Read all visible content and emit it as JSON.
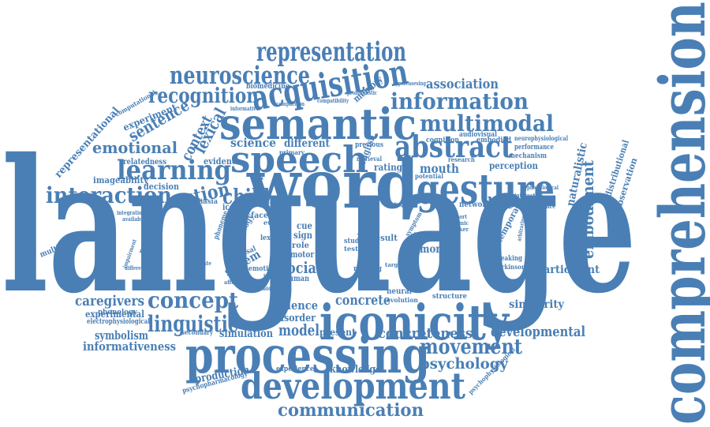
{
  "color": "#4a7fb5",
  "words": {
    "language": "language",
    "comprehension": "comprehension",
    "word": "word",
    "processing": "processing",
    "development": "development",
    "iconicity": "iconicity",
    "semantic": "semantic",
    "speech": "speech",
    "acquisition": "acquisition",
    "representation": "representation",
    "neuroscience": "neuroscience",
    "information": "information",
    "gesture": "gesture",
    "abstract": "abstract",
    "multimodal": "multimodal",
    "learning": "learning",
    "interaction": "interaction",
    "recognition": "recognition",
    "emotional": "emotional",
    "child": "child",
    "action": "action",
    "concept": "concept",
    "linguistic": "linguistic",
    "communication": "communication",
    "movement": "movement",
    "psychology": "psychology",
    "embodiment": "embodiment",
    "developmental": "developmental",
    "caregivers": "caregivers",
    "concreteness": "concreteness",
    "concrete": "concrete",
    "model": "model",
    "social": "social",
    "valence": "valence",
    "disorder": "disorder",
    "association": "association",
    "directed": "directed",
    "mouth": "mouth",
    "participant": "participant",
    "similarity": "similarity",
    "knowledge": "knowledge",
    "production": "production",
    "experimental": "experimental",
    "symbolism": "symbolism",
    "informativeness": "informativeness",
    "simulation": "simulation",
    "present": "present",
    "science": "science",
    "different": "different",
    "lexical": "lexical",
    "context": "context",
    "sentence": "sentence",
    "experiment": "experiment",
    "representational": "representational",
    "imageability": "imageability",
    "decision": "decision",
    "relatedness": "relatedness",
    "evidence": "evidence",
    "rating": "rating",
    "perception": "perception",
    "naturalistic": "naturalistic",
    "distributional": "distributional",
    "observation": "observation",
    "network": "network",
    "temporal": "temporal",
    "memory": "memory",
    "biomedicine": "biomedicine",
    "audiovisual": "audiovisual",
    "embodied": "embodied",
    "cognition": "cognition",
    "mechanism": "mechanism",
    "performance": "performance",
    "neurophysiological": "neurophysiological",
    "multimodality": "multimodality",
    "pragmatic": "pragmatic",
    "system": "system",
    "neurology": "neurology",
    "iconic": "iconic",
    "aphasia": "aphasia",
    "phonology": "phonology",
    "electrophysiological": "electrophysiological",
    "psychopharmacology": "psychopharmacology",
    "experience": "experience",
    "secondary": "secondary",
    "human": "human",
    "motor": "motor",
    "emotion": "emotion",
    "result": "result",
    "visual": "visual",
    "more": "more",
    "sound": "sound",
    "reading": "reading",
    "speed": "speed",
    "neural": "neural",
    "evolution": "evolution",
    "structure": "structure",
    "speaking": "speaking",
    "parkinson": "parkinson",
    "psychophysiological": "psychophysiological",
    "english": "english",
    "previous": "previous",
    "sign": "sign",
    "cue": "cue",
    "role": "role",
    "face": "face",
    "lexicon": "lexicon",
    "event": "event",
    "primary": "primary",
    "mapping": "mapping",
    "effect": "effect",
    "word_small": "word",
    "study": "study",
    "test": "test",
    "surprisal": "surprisal",
    "phoneme": "phoneme",
    "iconicity_small": "iconicity",
    "computational": "computational",
    "research": "research",
    "potential": "potential",
    "retrieval": "retrieval",
    "hypercasesing": "hypercasesing",
    "probabilistic": "probabilistic",
    "compatibility": "compatibility",
    "comparison": "comparison",
    "informative": "informative",
    "relevance": "relevance",
    "phonological": "phonological",
    "interactive": "interactive",
    "dynamic": "dynamic",
    "speaker": "speaker",
    "support": "support",
    "facilitate": "facilitate",
    "impairment": "impairment",
    "difference": "difference",
    "affective": "affective",
    "integration": "integration",
    "availability": "availability",
    "symptom": "symptom",
    "studies": "studies",
    "target": "target",
    "motion": "motion",
    "inferior": "inferior",
    "arbitrariness": "arbitrariness"
  }
}
